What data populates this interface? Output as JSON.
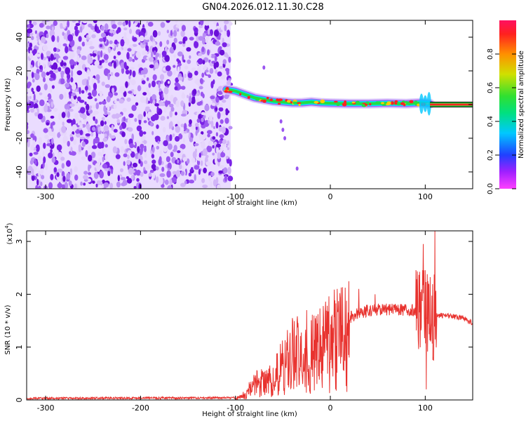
{
  "title": "GN04.2026.012.11.30.C28",
  "colors": {
    "snr_line": "#e8322e",
    "spectral_core": "#ff2222",
    "spectral_mid": "#22dd44",
    "spectral_low": "#00e0ff",
    "spectral_halo": "#6a0fd8"
  },
  "chart_data": [
    {
      "type": "heatmap",
      "name": "spectrogram",
      "xlabel": "Height of straight line (km)",
      "ylabel": "Frequency (Hz)",
      "xlim": [
        -320,
        150
      ],
      "ylim": [
        -50,
        50
      ],
      "x_ticks": [
        -300,
        -200,
        -100,
        0,
        100
      ],
      "x_tick_labels": [
        "-300",
        "-200",
        "-100",
        "0",
        "100"
      ],
      "y_ticks": [
        -40,
        -20,
        0,
        20,
        40
      ],
      "y_tick_labels": [
        "-40",
        "-20",
        "0",
        "20",
        "40"
      ],
      "noise_region_x": [
        -320,
        -105
      ],
      "signal_track": {
        "x": [
          -110,
          -100,
          -90,
          -80,
          -70,
          -60,
          -50,
          -40,
          -30,
          -20,
          -10,
          0,
          20,
          40,
          60,
          80,
          95,
          105
        ],
        "freq": [
          9,
          8,
          6,
          4,
          3,
          2,
          1.5,
          1,
          1,
          1.5,
          1,
          0.8,
          0.5,
          0.5,
          0.8,
          0.5,
          1,
          0.5
        ]
      },
      "tone_line": {
        "x": [
          105,
          150
        ],
        "freq": 0
      },
      "colorbar": {
        "label": "Normalized spectral amplitude",
        "range": [
          0,
          1
        ],
        "ticks": [
          0.0,
          0.2,
          0.4,
          0.6,
          0.8
        ],
        "tick_labels": [
          "0.0",
          "0.2",
          "0.4",
          "0.6",
          "0.8"
        ]
      }
    },
    {
      "type": "line",
      "name": "snr",
      "xlabel": "Height of straight line (km)",
      "ylabel": "SNR (10 * v/v)",
      "y_multiplier": "(x10",
      "y_multiplier_exp": "4",
      "y_multiplier_close": ")",
      "xlim": [
        -320,
        150
      ],
      "ylim": [
        0,
        3.2
      ],
      "x_ticks": [
        -300,
        -200,
        -100,
        0,
        100
      ],
      "x_tick_labels": [
        "-300",
        "-200",
        "-100",
        "0",
        "100"
      ],
      "y_ticks": [
        0,
        1,
        2,
        3
      ],
      "y_tick_labels": [
        "0",
        "1",
        "2",
        "3"
      ],
      "series": [
        {
          "name": "SNR",
          "envelope_x": [
            -320,
            -100,
            -90,
            -80,
            -70,
            -60,
            -50,
            -40,
            -30,
            -20,
            -10,
            0,
            10,
            20,
            30,
            40,
            60,
            80,
            90,
            100,
            105,
            110,
            120,
            140,
            150
          ],
          "envelope_y": [
            0.03,
            0.04,
            0.12,
            0.35,
            0.4,
            0.5,
            0.75,
            1.0,
            1.05,
            1.05,
            1.15,
            1.3,
            1.45,
            1.55,
            1.65,
            1.7,
            1.72,
            1.7,
            1.7,
            1.6,
            1.5,
            1.6,
            1.6,
            1.55,
            1.45
          ],
          "spikes": [
            {
              "x": -40,
              "y": 1.55
            },
            {
              "x": -25,
              "y": 1.7
            },
            {
              "x": 30,
              "y": 2.1
            },
            {
              "x": 47,
              "y": 2.0
            },
            {
              "x": 98,
              "y": 2.95
            },
            {
              "x": 101,
              "y": 0.2
            },
            {
              "x": 110,
              "y": 3.2
            }
          ]
        }
      ]
    }
  ]
}
